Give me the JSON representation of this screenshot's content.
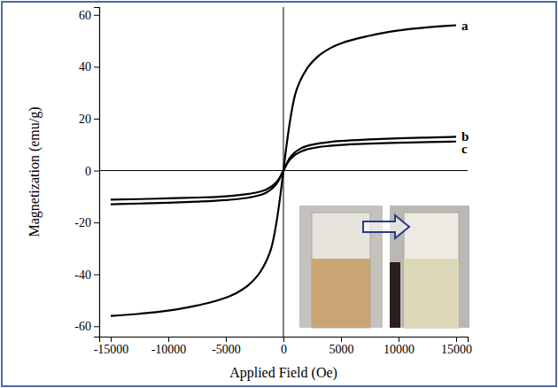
{
  "chart_data": {
    "type": "line",
    "x_label": "Applied Field (Oe)",
    "y_label": "Magnetization (emu/g)",
    "x": [
      -15000,
      -12500,
      -10000,
      -7500,
      -5000,
      -4000,
      -3000,
      -2000,
      -1500,
      -1000,
      -500,
      -250,
      0,
      250,
      500,
      1000,
      1500,
      2000,
      3000,
      4000,
      5000,
      7500,
      10000,
      12500,
      15000
    ],
    "series": [
      {
        "name": "a",
        "color": "#000000",
        "values": [
          -56,
          -55.2,
          -54,
          -52,
          -49,
          -47,
          -44,
          -39,
          -35,
          -29,
          -17,
          -9,
          0,
          9,
          17,
          29,
          35,
          39,
          44,
          47,
          49,
          52,
          54,
          55.2,
          56
        ]
      },
      {
        "name": "b",
        "color": "#000000",
        "values": [
          -13,
          -12.7,
          -12.4,
          -12,
          -11.4,
          -11,
          -10.4,
          -9.4,
          -8.5,
          -7,
          -4.5,
          -2.4,
          0,
          2.4,
          4.5,
          7,
          8.5,
          9.4,
          10.4,
          11,
          11.4,
          12,
          12.4,
          12.7,
          13
        ]
      },
      {
        "name": "c",
        "color": "#000000",
        "values": [
          -11.2,
          -11,
          -10.7,
          -10.4,
          -9.9,
          -9.5,
          -9,
          -8.1,
          -7.3,
          -6,
          -3.9,
          -2.1,
          0,
          2.1,
          3.9,
          6,
          7.3,
          8.1,
          9,
          9.5,
          9.9,
          10.4,
          10.7,
          11,
          11.2
        ]
      }
    ],
    "xlim": [
      -16000,
      16000
    ],
    "ylim": [
      -64,
      63
    ],
    "xticks": [
      -15000,
      -10000,
      -5000,
      0,
      5000,
      10000,
      15000
    ],
    "yticks": [
      -60,
      -40,
      -20,
      0,
      20,
      40,
      60
    ]
  }
}
